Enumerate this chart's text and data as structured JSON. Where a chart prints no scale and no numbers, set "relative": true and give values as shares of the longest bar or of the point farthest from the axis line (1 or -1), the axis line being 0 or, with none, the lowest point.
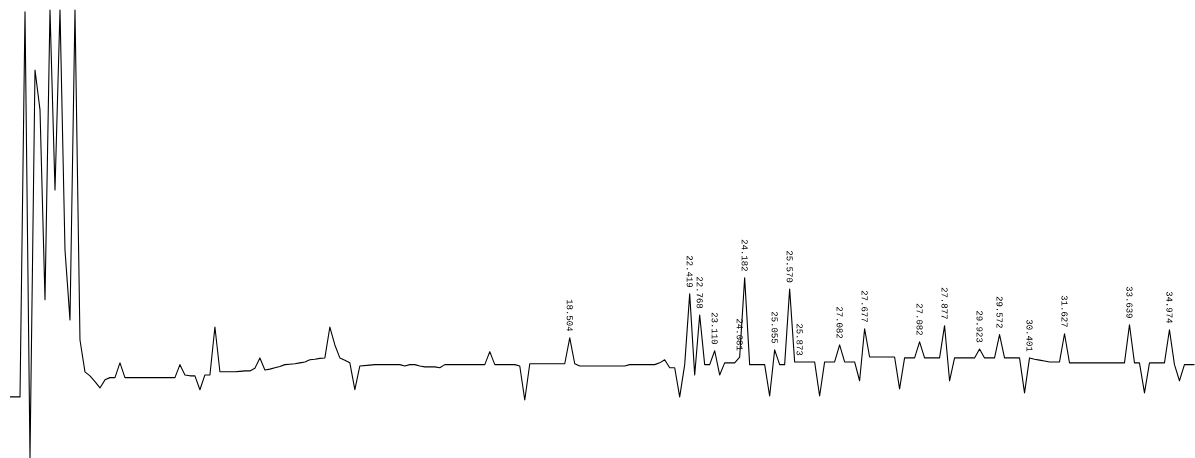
{
  "chart_data": {
    "type": "line",
    "relative": true,
    "color": "#000000",
    "categories": [
      null,
      null,
      null,
      null,
      null,
      null,
      null,
      null,
      null,
      null,
      null,
      null,
      null,
      null,
      null,
      null,
      null,
      null,
      null,
      null,
      null,
      null,
      null,
      null,
      null,
      null,
      null,
      null,
      null,
      null,
      null,
      null,
      null,
      null,
      null,
      null,
      null,
      null,
      null,
      null,
      null,
      null,
      null,
      null,
      null,
      null,
      null,
      null,
      null,
      null,
      null,
      null,
      null,
      null,
      null,
      null,
      null,
      null,
      null,
      null,
      null,
      null,
      null,
      null,
      null,
      null,
      null,
      null,
      null,
      null,
      null,
      null,
      null,
      null,
      null,
      null,
      null,
      null,
      null,
      null,
      null,
      null,
      null,
      null,
      null,
      null,
      null,
      null,
      null,
      null,
      null,
      null,
      null,
      null,
      null,
      null,
      null,
      null,
      null,
      null,
      null,
      null,
      null,
      null,
      null,
      null,
      null,
      null,
      null,
      null,
      null,
      null,
      null,
      null,
      null,
      null,
      null,
      null,
      null,
      null,
      null,
      null,
      null,
      null,
      null,
      null,
      null,
      null,
      null,
      null,
      null,
      null,
      null,
      null,
      null,
      null,
      null,
      null,
      null,
      null,
      null,
      null,
      null,
      null,
      null,
      null,
      null,
      null,
      null,
      null,
      null,
      null,
      null,
      null,
      null,
      null,
      null,
      null,
      null,
      null,
      null,
      null,
      null,
      null,
      null,
      null,
      null,
      null,
      null,
      null,
      null,
      null,
      null,
      null,
      null,
      null,
      null,
      null,
      null,
      null,
      null,
      null,
      null,
      null,
      null,
      null,
      null,
      null,
      null,
      null,
      null,
      null,
      null,
      null,
      null,
      null,
      null,
      null,
      null,
      null,
      null,
      null,
      null,
      null,
      null,
      null,
      null,
      null,
      null,
      null,
      null,
      null,
      null,
      null,
      null,
      null,
      null,
      null,
      null,
      null,
      null,
      null,
      null,
      null,
      null,
      null,
      null,
      null,
      null,
      null,
      null,
      null,
      null,
      null,
      null,
      null,
      null,
      null
    ],
    "values": [
      0.136,
      0.136,
      0.136,
      0.996,
      0,
      0.866,
      0.777,
      0.353,
      1,
      0.598,
      1,
      0.464,
      0.308,
      1,
      0.263,
      0.192,
      0.183,
      0.17,
      0.156,
      0.174,
      0.179,
      0.179,
      0.212,
      0.179,
      0.179,
      0.179,
      0.179,
      0.179,
      0.179,
      0.179,
      0.179,
      0.179,
      0.179,
      0.179,
      0.208,
      0.185,
      0.183,
      0.183,
      0.152,
      0.185,
      0.185,
      0.292,
      0.192,
      0.192,
      0.192,
      0.192,
      0.193,
      0.194,
      0.194,
      0.2,
      0.223,
      0.196,
      0.198,
      0.201,
      0.204,
      0.208,
      0.209,
      0.21,
      0.212,
      0.214,
      0.219,
      0.22,
      0.222,
      0.223,
      0.292,
      0.252,
      0.223,
      0.218,
      0.212,
      0.152,
      0.205,
      0.206,
      0.207,
      0.208,
      0.208,
      0.208,
      0.208,
      0.208,
      0.208,
      0.205,
      0.208,
      0.208,
      0.205,
      0.203,
      0.203,
      0.203,
      0.201,
      0.208,
      0.208,
      0.208,
      0.208,
      0.208,
      0.208,
      0.208,
      0.208,
      0.208,
      0.237,
      0.208,
      0.208,
      0.208,
      0.208,
      0.208,
      0.205,
      0.129,
      0.21,
      0.21,
      0.21,
      0.21,
      0.21,
      0.21,
      0.21,
      0.21,
      0.268,
      0.21,
      0.205,
      0.205,
      0.205,
      0.205,
      0.205,
      0.205,
      0.205,
      0.205,
      0.205,
      0.205,
      0.208,
      0.208,
      0.208,
      0.208,
      0.208,
      0.208,
      0.212,
      0.219,
      0.201,
      0.201,
      0.136,
      0.208,
      0.366,
      0.185,
      0.319,
      0.208,
      0.208,
      0.239,
      0.185,
      0.212,
      0.212,
      0.212,
      0.225,
      0.402,
      0.208,
      0.208,
      0.208,
      0.208,
      0.138,
      0.241,
      0.208,
      0.208,
      0.377,
      0.214,
      0.214,
      0.214,
      0.214,
      0.214,
      0.138,
      0.214,
      0.214,
      0.214,
      0.252,
      0.214,
      0.214,
      0.214,
      0.172,
      0.288,
      0.225,
      0.225,
      0.225,
      0.225,
      0.225,
      0.225,
      0.154,
      0.223,
      0.223,
      0.223,
      0.259,
      0.223,
      0.223,
      0.223,
      0.223,
      0.295,
      0.172,
      0.223,
      0.223,
      0.223,
      0.223,
      0.223,
      0.243,
      0.223,
      0.223,
      0.223,
      0.275,
      0.223,
      0.223,
      0.223,
      0.223,
      0.145,
      0.223,
      0.22,
      0.218,
      0.216,
      0.214,
      0.214,
      0.214,
      0.277,
      0.212,
      0.212,
      0.212,
      0.212,
      0.212,
      0.212,
      0.212,
      0.212,
      0.212,
      0.212,
      0.212,
      0.212,
      0.297,
      0.212,
      0.212,
      0.145,
      0.212,
      0.212,
      0.212,
      0.212,
      0.286,
      0.208,
      0.172,
      0.208,
      0.208,
      0.208
    ],
    "annotations": [
      "18.504",
      "22.419",
      "22.768",
      "23.110",
      "24.081",
      "24.182",
      "25.055",
      "25.570",
      "25.873",
      "27.082",
      "27.677",
      "27.082",
      "27.877",
      "29.923",
      "29.572",
      "30.401",
      "31.627",
      "33.639",
      "34.974"
    ]
  }
}
